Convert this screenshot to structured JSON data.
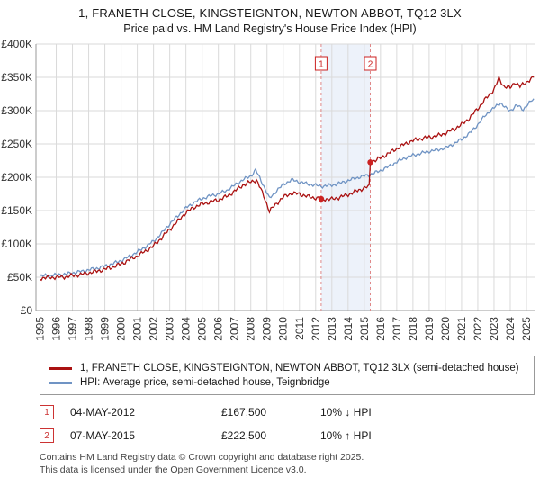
{
  "title": "1, FRANETH CLOSE, KINGSTEIGNTON, NEWTON ABBOT, TQ12 3LX",
  "subtitle": "Price paid vs. HM Land Registry's House Price Index (HPI)",
  "chart_data": {
    "type": "line",
    "xlabel": "",
    "ylabel": "",
    "xlim": [
      1994.75,
      2025.5
    ],
    "ylim": [
      0,
      400000
    ],
    "grid": true,
    "legend_position": "bottom",
    "x_ticks": [
      1995,
      1996,
      1997,
      1998,
      1999,
      2000,
      2001,
      2002,
      2003,
      2004,
      2005,
      2006,
      2007,
      2008,
      2009,
      2010,
      2011,
      2012,
      2013,
      2014,
      2015,
      2016,
      2017,
      2018,
      2019,
      2020,
      2021,
      2022,
      2023,
      2024,
      2025
    ],
    "y_ticks": [
      {
        "value": 0,
        "label": "£0"
      },
      {
        "value": 50000,
        "label": "£50K"
      },
      {
        "value": 100000,
        "label": "£100K"
      },
      {
        "value": 150000,
        "label": "£150K"
      },
      {
        "value": 200000,
        "label": "£200K"
      },
      {
        "value": 250000,
        "label": "£250K"
      },
      {
        "value": 300000,
        "label": "£300K"
      },
      {
        "value": 350000,
        "label": "£350K"
      },
      {
        "value": 400000,
        "label": "£400K"
      }
    ],
    "shade_region": {
      "from": 2012.34,
      "to": 2015.37,
      "color": "#edf2fa"
    },
    "dashed_line_color": "#e08888",
    "marker_color": "#cc2222",
    "series": [
      {
        "id": "property",
        "name": "1, FRANETH CLOSE, KINGSTEIGNTON, NEWTON ABBOT, TQ12 3LX (semi-detached house)",
        "color": "#aa1111",
        "noise": 2200,
        "points": [
          [
            1995.0,
            48500
          ],
          [
            1995.5,
            49500
          ],
          [
            1996.0,
            50000
          ],
          [
            1996.5,
            50500
          ],
          [
            1997.0,
            52500
          ],
          [
            1997.5,
            54000
          ],
          [
            1998.0,
            56500
          ],
          [
            1998.5,
            59000
          ],
          [
            1999.0,
            62000
          ],
          [
            1999.5,
            65500
          ],
          [
            2000.0,
            70000
          ],
          [
            2000.5,
            76000
          ],
          [
            2001.0,
            82000
          ],
          [
            2001.5,
            89000
          ],
          [
            2002.0,
            97000
          ],
          [
            2002.5,
            109000
          ],
          [
            2003.0,
            122000
          ],
          [
            2003.5,
            134000
          ],
          [
            2004.0,
            147000
          ],
          [
            2004.5,
            155000
          ],
          [
            2005.0,
            160000
          ],
          [
            2005.5,
            163000
          ],
          [
            2006.0,
            166000
          ],
          [
            2006.5,
            171000
          ],
          [
            2007.0,
            179000
          ],
          [
            2007.5,
            188000
          ],
          [
            2008.0,
            193000
          ],
          [
            2008.35,
            196000
          ],
          [
            2008.8,
            172000
          ],
          [
            2009.15,
            149000
          ],
          [
            2009.6,
            161000
          ],
          [
            2010.0,
            170000
          ],
          [
            2010.5,
            176000
          ],
          [
            2011.0,
            175000
          ],
          [
            2011.5,
            171000
          ],
          [
            2012.0,
            169000
          ],
          [
            2012.34,
            167500
          ],
          [
            2013.0,
            167000
          ],
          [
            2013.5,
            170000
          ],
          [
            2014.0,
            174000
          ],
          [
            2014.5,
            179000
          ],
          [
            2015.0,
            184000
          ],
          [
            2015.3,
            186000
          ],
          [
            2015.37,
            222500
          ],
          [
            2016.0,
            229000
          ],
          [
            2016.5,
            236000
          ],
          [
            2017.0,
            243000
          ],
          [
            2017.5,
            250000
          ],
          [
            2018.0,
            255000
          ],
          [
            2018.5,
            258000
          ],
          [
            2019.0,
            260000
          ],
          [
            2019.5,
            262000
          ],
          [
            2020.0,
            266000
          ],
          [
            2020.5,
            272000
          ],
          [
            2021.0,
            279000
          ],
          [
            2021.5,
            289000
          ],
          [
            2022.0,
            303000
          ],
          [
            2022.5,
            318000
          ],
          [
            2023.0,
            332000
          ],
          [
            2023.3,
            348000
          ],
          [
            2023.6,
            337000
          ],
          [
            2024.0,
            334000
          ],
          [
            2024.3,
            343000
          ],
          [
            2024.6,
            336000
          ],
          [
            2025.0,
            343000
          ],
          [
            2025.45,
            350000
          ]
        ]
      },
      {
        "id": "hpi",
        "name": "HPI: Average price, semi-detached house, Teignbridge",
        "color": "#7094c4",
        "noise": 1800,
        "points": [
          [
            1995.0,
            52000
          ],
          [
            1995.5,
            52500
          ],
          [
            1996.0,
            53500
          ],
          [
            1996.5,
            54500
          ],
          [
            1997.0,
            56500
          ],
          [
            1997.5,
            58500
          ],
          [
            1998.0,
            61000
          ],
          [
            1998.5,
            63500
          ],
          [
            1999.0,
            66500
          ],
          [
            1999.5,
            70500
          ],
          [
            2000.0,
            75000
          ],
          [
            2000.5,
            81000
          ],
          [
            2001.0,
            88000
          ],
          [
            2001.5,
            95500
          ],
          [
            2002.0,
            104000
          ],
          [
            2002.5,
            116000
          ],
          [
            2003.0,
            130000
          ],
          [
            2003.5,
            142000
          ],
          [
            2004.0,
            154000
          ],
          [
            2004.5,
            162000
          ],
          [
            2005.0,
            168000
          ],
          [
            2005.5,
            172000
          ],
          [
            2006.0,
            175000
          ],
          [
            2006.5,
            180000
          ],
          [
            2007.0,
            188000
          ],
          [
            2007.5,
            196000
          ],
          [
            2008.0,
            202000
          ],
          [
            2008.3,
            211000
          ],
          [
            2008.8,
            187000
          ],
          [
            2009.15,
            168000
          ],
          [
            2009.6,
            180000
          ],
          [
            2010.0,
            189000
          ],
          [
            2010.5,
            196000
          ],
          [
            2011.0,
            193000
          ],
          [
            2011.5,
            190000
          ],
          [
            2012.0,
            188000
          ],
          [
            2012.34,
            186500
          ],
          [
            2013.0,
            188000
          ],
          [
            2013.5,
            191000
          ],
          [
            2014.0,
            195000
          ],
          [
            2014.5,
            199000
          ],
          [
            2015.0,
            202000
          ],
          [
            2015.37,
            204000
          ],
          [
            2016.0,
            210000
          ],
          [
            2016.5,
            216000
          ],
          [
            2017.0,
            223000
          ],
          [
            2017.5,
            229000
          ],
          [
            2018.0,
            233000
          ],
          [
            2018.5,
            236000
          ],
          [
            2019.0,
            239000
          ],
          [
            2019.5,
            241000
          ],
          [
            2020.0,
            244000
          ],
          [
            2020.5,
            250000
          ],
          [
            2021.0,
            257000
          ],
          [
            2021.5,
            266000
          ],
          [
            2022.0,
            279000
          ],
          [
            2022.5,
            294000
          ],
          [
            2023.0,
            304000
          ],
          [
            2023.4,
            312000
          ],
          [
            2023.8,
            302000
          ],
          [
            2024.0,
            300000
          ],
          [
            2024.4,
            308000
          ],
          [
            2024.8,
            302000
          ],
          [
            2025.0,
            307000
          ],
          [
            2025.45,
            318000
          ]
        ]
      }
    ],
    "markers": [
      {
        "label": "1",
        "x": 2012.34,
        "y": 167500,
        "date": "04-MAY-2012",
        "price": "£167,500",
        "vs_hpi": "10% ↓ HPI"
      },
      {
        "label": "2",
        "x": 2015.37,
        "y": 222500,
        "date": "07-MAY-2015",
        "price": "£222,500",
        "vs_hpi": "10% ↑ HPI"
      }
    ]
  },
  "footer": {
    "line1": "Contains HM Land Registry data © Crown copyright and database right 2025.",
    "line2": "This data is licensed under the Open Government Licence v3.0."
  }
}
